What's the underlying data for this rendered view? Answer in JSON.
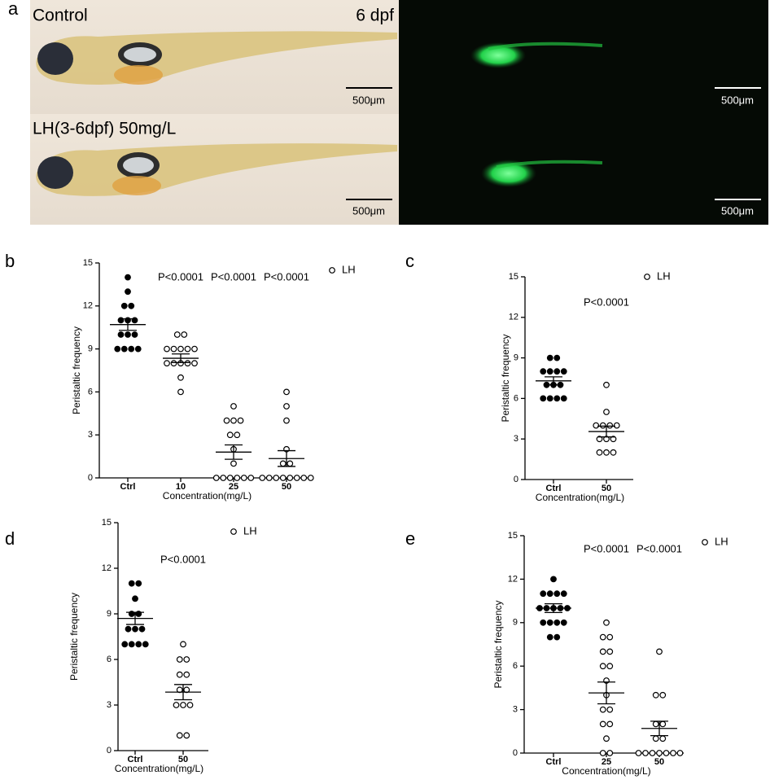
{
  "panel_a": {
    "label": "a",
    "top_left": "Control",
    "top_age": "6 dpf",
    "bottom_left": "LH(3-6dpf) 50mg/L",
    "scale_bars": [
      "500μm",
      "500μm",
      "500μm",
      "500μm"
    ]
  },
  "chart_data": [
    {
      "panel": "b",
      "type": "dot",
      "y_label": "Peristaltic frequency",
      "x_label": "Concentration(mg/L)",
      "categories": [
        "Ctrl",
        "10",
        "25",
        "50"
      ],
      "series": [
        {
          "name": "LH",
          "color": "#000000",
          "values": [
            [
              14,
              13,
              12,
              12,
              11,
              11,
              11,
              10,
              10,
              10,
              9,
              9,
              9,
              9
            ],
            [
              10,
              10,
              9,
              9,
              9,
              9,
              9,
              8,
              8,
              8,
              8,
              8,
              7,
              6
            ],
            [
              5,
              4,
              4,
              4,
              3,
              3,
              2,
              1,
              0,
              0,
              0,
              0,
              0,
              0
            ],
            [
              6,
              5,
              4,
              2,
              1,
              1,
              0,
              0,
              0,
              0,
              0,
              0,
              0,
              0
            ]
          ]
        }
      ],
      "filled": [
        true,
        false,
        false,
        false
      ],
      "mean": [
        10.7,
        8.35,
        1.8,
        1.35
      ],
      "sem": [
        0.4,
        0.3,
        0.5,
        0.55
      ],
      "annotations": [
        null,
        "P<0.0001",
        "P<0.0001",
        "P<0.0001"
      ],
      "ylim": [
        0,
        15
      ],
      "yticks": [
        0,
        3,
        6,
        9,
        12,
        15
      ]
    },
    {
      "panel": "c",
      "type": "dot",
      "y_label": "Peristaltic frequency",
      "x_label": "Concentration(mg/L)",
      "categories": [
        "Ctrl",
        "50"
      ],
      "series": [
        {
          "name": "LH",
          "color": "#000000",
          "values": [
            [
              9,
              9,
              8,
              8,
              8,
              8,
              7,
              7,
              7,
              6,
              6,
              6,
              6
            ],
            [
              7,
              5,
              4,
              4,
              4,
              4,
              3,
              3,
              3,
              2,
              2,
              2
            ]
          ]
        }
      ],
      "filled": [
        true,
        false
      ],
      "mean": [
        7.3,
        3.55
      ],
      "sem": [
        0.3,
        0.4
      ],
      "annotations": [
        null,
        "P<0.0001"
      ],
      "ylim": [
        0,
        15
      ],
      "yticks": [
        0,
        3,
        6,
        9,
        12,
        15
      ]
    },
    {
      "panel": "d",
      "type": "dot",
      "y_label": "Peristaltic frequency",
      "x_label": "Concentration(mg/L)",
      "categories": [
        "Ctrl",
        "50"
      ],
      "series": [
        {
          "name": "LH",
          "color": "#000000",
          "values": [
            [
              11,
              11,
              10,
              9,
              9,
              8,
              8,
              8,
              7,
              7,
              7,
              7
            ],
            [
              7,
              6,
              6,
              5,
              5,
              4,
              4,
              3,
              3,
              3,
              1,
              1
            ]
          ]
        }
      ],
      "filled": [
        true,
        false
      ],
      "mean": [
        8.7,
        3.85
      ],
      "sem": [
        0.4,
        0.5
      ],
      "annotations": [
        null,
        "P<0.0001"
      ],
      "ylim": [
        0,
        15
      ],
      "yticks": [
        0,
        3,
        6,
        9,
        12,
        15
      ]
    },
    {
      "panel": "e",
      "type": "dot",
      "y_label": "Peristaltic frequency",
      "x_label": "Concentration(mg/L)",
      "categories": [
        "Ctrl",
        "25",
        "50"
      ],
      "series": [
        {
          "name": "LH",
          "color": "#000000",
          "values": [
            [
              12,
              11,
              11,
              11,
              11,
              10,
              10,
              10,
              10,
              10,
              9,
              9,
              9,
              9,
              8,
              8
            ],
            [
              9,
              8,
              8,
              7,
              7,
              6,
              6,
              5,
              4,
              3,
              3,
              2,
              2,
              1,
              0,
              0
            ],
            [
              7,
              4,
              4,
              2,
              2,
              1,
              1,
              0,
              0,
              0,
              0,
              0,
              0,
              0
            ]
          ]
        }
      ],
      "filled": [
        true,
        false,
        false
      ],
      "mean": [
        10.0,
        4.15,
        1.7
      ],
      "sem": [
        0.3,
        0.75,
        0.5
      ],
      "annotations": [
        null,
        "P<0.0001",
        "P<0.0001"
      ],
      "ylim": [
        0,
        15
      ],
      "yticks": [
        0,
        3,
        6,
        9,
        12,
        15
      ]
    }
  ]
}
